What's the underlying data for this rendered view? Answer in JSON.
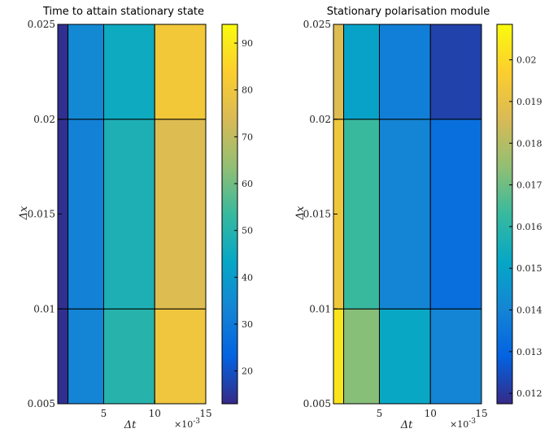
{
  "chart_data": [
    {
      "type": "heatmap",
      "title": "Time to attain stationary state",
      "xlabel": "Δt",
      "ylabel": "Δx",
      "x_multiplier_label": "×10",
      "x_multiplier_exp": "-3",
      "x_edges": [
        0.5,
        1.5,
        5,
        10,
        15
      ],
      "y_edges": [
        0.005,
        0.01,
        0.02,
        0.025
      ],
      "xlim": [
        0.5,
        15
      ],
      "ylim": [
        0.005,
        0.025
      ],
      "xticks": [
        5,
        10,
        15
      ],
      "xtick_labels": [
        "5",
        "10",
        "15"
      ],
      "yticks": [
        0.005,
        0.01,
        0.015,
        0.02,
        0.025
      ],
      "ytick_labels": [
        "0.005",
        "0.01",
        "0.015",
        "0.02",
        "0.025"
      ],
      "values": [
        [
          14,
          33,
          50,
          80
        ],
        [
          14,
          32,
          48,
          75
        ],
        [
          14,
          34,
          45,
          81
        ]
      ],
      "colorbar": {
        "min": 13,
        "max": 94,
        "ticks": [
          20,
          30,
          40,
          50,
          60,
          70,
          80,
          90
        ],
        "tick_labels": [
          "20",
          "30",
          "40",
          "50",
          "60",
          "70",
          "80",
          "90"
        ]
      }
    },
    {
      "type": "heatmap",
      "title": "Stationary polarisation module",
      "xlabel": "Δt",
      "ylabel": "Δx",
      "x_multiplier_label": "×10",
      "x_multiplier_exp": "-3",
      "x_edges": [
        0.5,
        1.5,
        5,
        10,
        15
      ],
      "y_edges": [
        0.005,
        0.01,
        0.02,
        0.025
      ],
      "xlim": [
        0.5,
        15
      ],
      "ylim": [
        0.005,
        0.025
      ],
      "xticks": [
        5,
        10,
        15
      ],
      "xtick_labels": [
        "5",
        "10",
        "15"
      ],
      "yticks": [
        0.005,
        0.01,
        0.015,
        0.02,
        0.025
      ],
      "ytick_labels": [
        "0.005",
        "0.01",
        "0.015",
        "0.02",
        "0.025"
      ],
      "values": [
        [
          0.0203,
          0.0173,
          0.0152,
          0.014
        ],
        [
          0.0193,
          0.0163,
          0.014,
          0.0133
        ],
        [
          0.0187,
          0.015,
          0.0138,
          0.0122
        ]
      ],
      "colorbar": {
        "min": 0.01175,
        "max": 0.02085,
        "ticks": [
          0.012,
          0.013,
          0.014,
          0.015,
          0.016,
          0.017,
          0.018,
          0.019,
          0.02
        ],
        "tick_labels": [
          "0.012",
          "0.013",
          "0.014",
          "0.015",
          "0.016",
          "0.017",
          "0.018",
          "0.019",
          "0.02"
        ]
      }
    }
  ]
}
